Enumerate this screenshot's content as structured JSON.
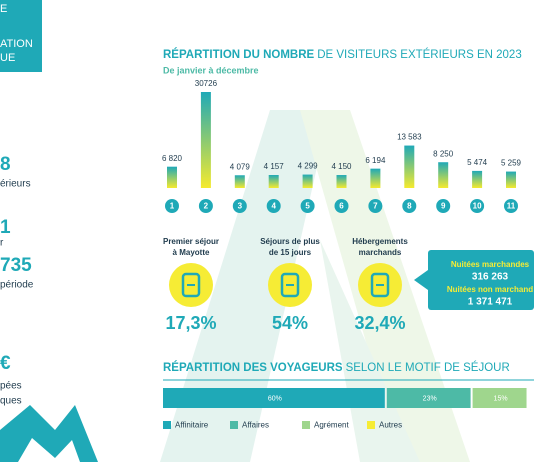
{
  "sidebar": {
    "banner": [
      "E",
      "ATION",
      "UE"
    ],
    "stats": [
      "8",
      "érieurs",
      "1",
      "r",
      "735",
      "période",
      "€",
      "pées",
      "ques"
    ]
  },
  "chart_data": [
    {
      "type": "bar",
      "title_bold": "RÉPARTITION DU NOMBRE",
      "title_light": "DE VISITEURS EXTÉRIEURS EN 2023",
      "subtitle": "De janvier à décembre",
      "categories": [
        "1",
        "2",
        "3",
        "4",
        "5",
        "6",
        "7",
        "8",
        "9",
        "10",
        "11"
      ],
      "values": [
        6820,
        30726,
        4079,
        4157,
        4299,
        4150,
        6194,
        13583,
        8250,
        5474,
        5259
      ],
      "value_labels": [
        "6 820",
        "30726",
        "4 079",
        "4 157",
        "4 299",
        "4 150",
        "6 194",
        "13 583",
        "8 250",
        "5 474",
        "5 259"
      ],
      "color": [
        "#1fa9b7",
        "#f5ea2e"
      ]
    },
    {
      "type": "stacked_bar",
      "title_bold": "RÉPARTITION DES VOYAGEURS",
      "title_light": "SELON LE MOTIF DE SÉJOUR",
      "series": [
        {
          "name": "Affinitaire",
          "color": "#1fa9b7",
          "values": [
            60
          ],
          "value_labels": [
            "60%"
          ]
        },
        {
          "name": "Affaires",
          "color": "#4dbaa6",
          "values": [
            23
          ],
          "value_labels": [
            "23%"
          ]
        },
        {
          "name": "Agrément",
          "color": "#9fd68d",
          "values": [
            15
          ],
          "value_labels": [
            "15%"
          ]
        },
        {
          "name": "Autres",
          "color": "#f6ec35",
          "values": [
            null
          ]
        }
      ]
    }
  ],
  "highlights": [
    {
      "label": [
        "Premier séjour",
        "à Mayotte"
      ],
      "value": "17,3%"
    },
    {
      "label": [
        "Séjours de plus",
        "de 15 jours"
      ],
      "value": "54%"
    },
    {
      "label": [
        "Hébergements",
        "marchands"
      ],
      "value": "32,4%"
    }
  ],
  "callout": {
    "lines": [
      "Nuitées marchandes",
      "316 263",
      "Nuitées non marchand",
      "1 371 471"
    ]
  }
}
